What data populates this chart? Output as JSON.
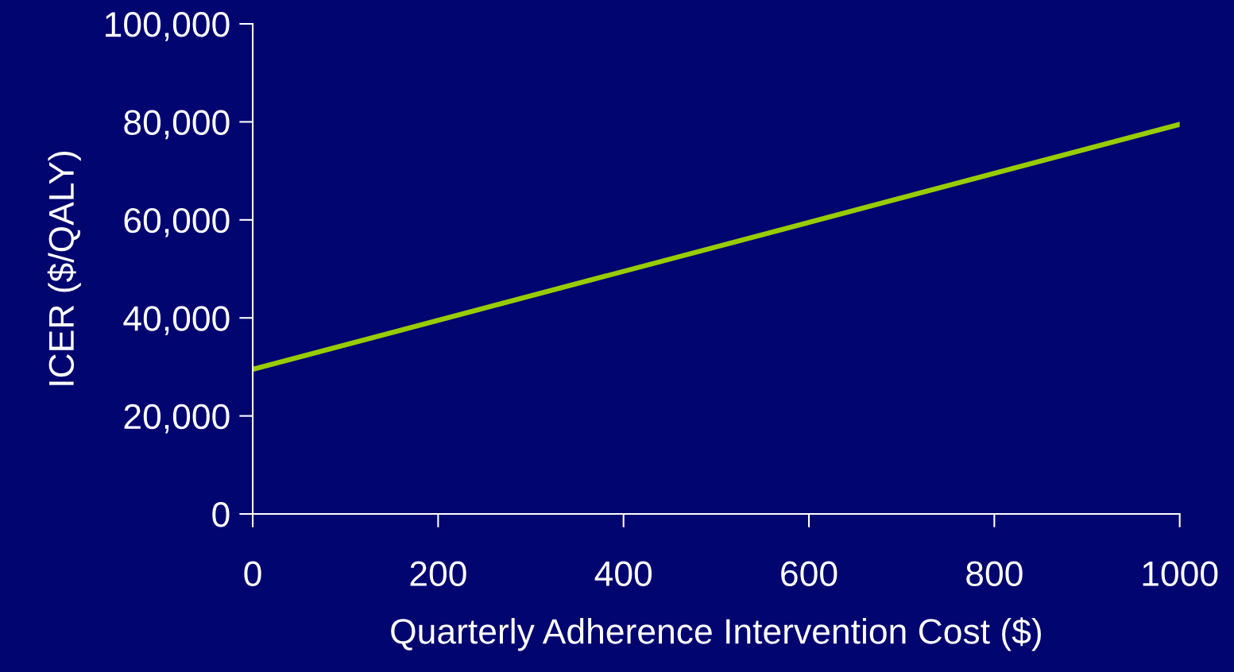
{
  "chart_data": {
    "type": "line",
    "xlabel": "Quarterly Adherence Intervention Cost ($)",
    "ylabel": "ICER ($/QALY)",
    "x": [
      0,
      1000
    ],
    "series": [
      {
        "color": "#99cc00",
        "values": [
          29500,
          79500
        ]
      }
    ],
    "xlim": [
      0,
      1000
    ],
    "xticks": [
      0,
      200,
      400,
      600,
      800,
      1000
    ],
    "ylim": [
      0,
      100000
    ],
    "yticks": [
      {
        "value": 0,
        "label": "0"
      },
      {
        "value": 20000,
        "label": "20,000"
      },
      {
        "value": 40000,
        "label": "40,000"
      },
      {
        "value": 60000,
        "label": "60,000"
      },
      {
        "value": 80000,
        "label": "80,000"
      },
      {
        "value": 100000,
        "label": "100,000"
      }
    ],
    "grid": false,
    "marker": "none",
    "line_style": "solid"
  }
}
